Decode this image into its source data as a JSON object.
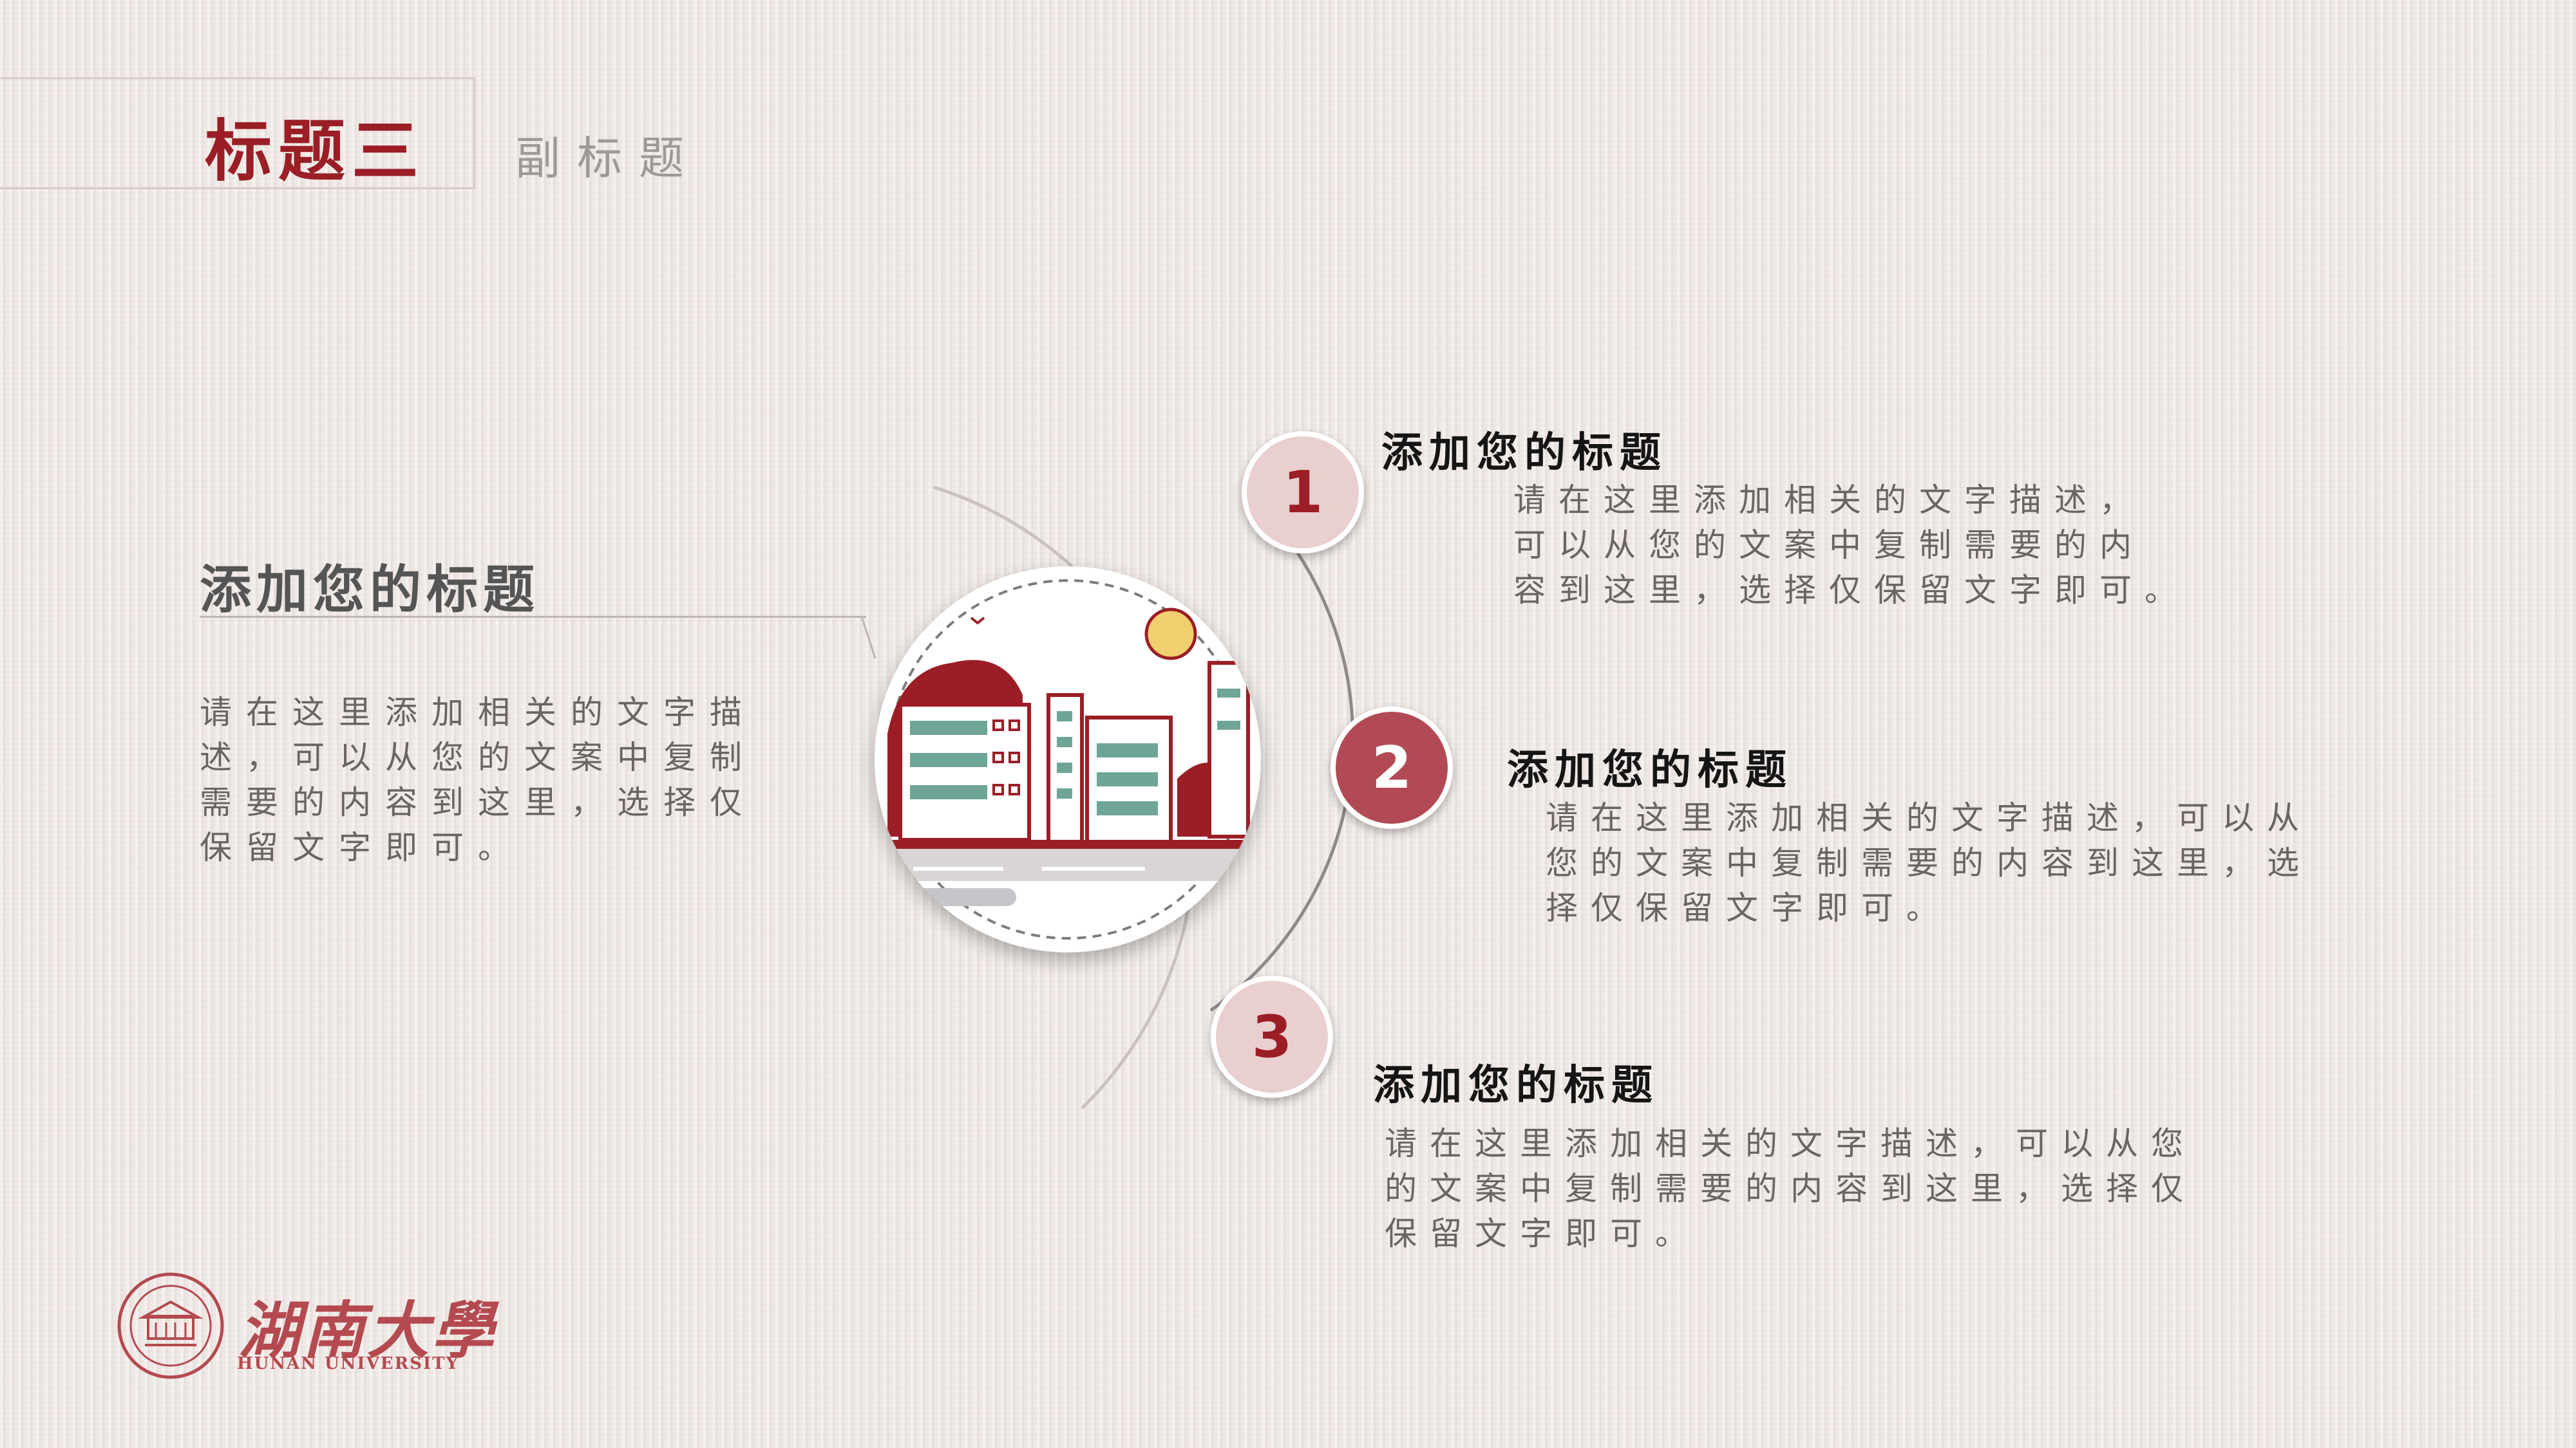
{
  "header": {
    "title": "标题三",
    "subtitle": "副标题"
  },
  "left_block": {
    "heading": "添加您的标题",
    "body": "请在这里添加相关的文字描述，可以从您的文案中复制需要的内容到这里，选择仅保留文字即可。"
  },
  "items": [
    {
      "number": "1",
      "title": "添加您的标题",
      "body_lines": [
        "请在这里添加相关的文字描述，",
        "可以从您的文案中复制需要的内",
        "容到这里，选择仅保留文字即可。"
      ]
    },
    {
      "number": "2",
      "title": "添加您的标题",
      "body_lines": [
        "请在这里添加相关的文字描述，可以从",
        "您的文案中复制需要的内容到这里，选",
        "择仅保留文字即可。"
      ]
    },
    {
      "number": "3",
      "title": "添加您的标题",
      "body_lines": [
        "请在这里添加相关的文字描述，可以从您",
        "的文案中复制需要的内容到这里，选择仅",
        "保留文字即可。"
      ]
    }
  ],
  "logo": {
    "name": "湖南大學",
    "name_en": "HUNAN UNIVERSITY"
  },
  "colors": {
    "accent_red": "#9b1e26",
    "circle_light": "#e9cfd0",
    "circle_dark": "#b24a55",
    "background": "#efe8e4"
  }
}
